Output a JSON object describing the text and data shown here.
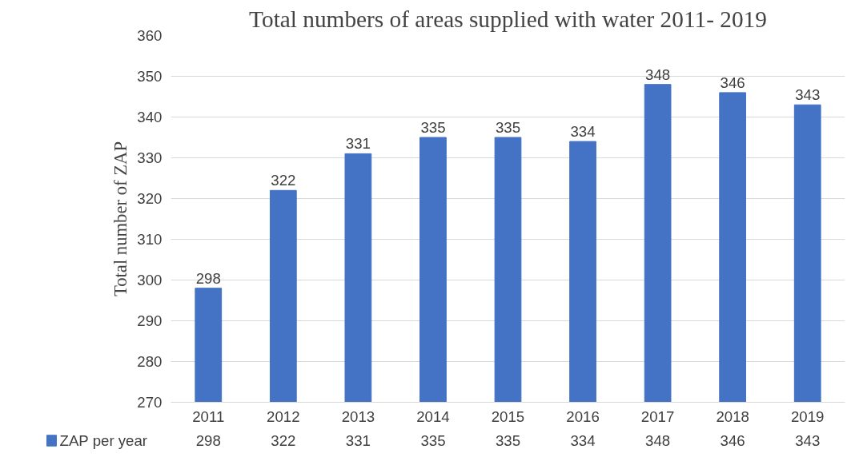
{
  "chart_data": {
    "type": "bar",
    "title": "Total numbers of areas supplied with water 2011- 2019",
    "ylabel": "Total number of ZAP",
    "categories": [
      "2011",
      "2012",
      "2013",
      "2014",
      "2015",
      "2016",
      "2017",
      "2018",
      "2019"
    ],
    "series": [
      {
        "name": "ZAP per year",
        "color": "#4472c4",
        "values": [
          298,
          322,
          331,
          335,
          335,
          334,
          348,
          346,
          343
        ]
      }
    ],
    "annotations": [
      {
        "text": "298",
        "x": "2011",
        "y": 298
      },
      {
        "text": "322",
        "x": "2012",
        "y": 322
      },
      {
        "text": "331",
        "x": "2013",
        "y": 331
      },
      {
        "text": "335",
        "x": "2014",
        "y": 335
      },
      {
        "text": "335",
        "x": "2015",
        "y": 335
      },
      {
        "text": "334",
        "x": "2016",
        "y": 334
      },
      {
        "text": "348",
        "x": "2017",
        "y": 348
      },
      {
        "text": "346",
        "x": "2018",
        "y": 346
      },
      {
        "text": "343",
        "x": "2019",
        "y": 343
      }
    ],
    "ylim": [
      270,
      360
    ],
    "yticks": [
      270,
      280,
      290,
      300,
      310,
      320,
      330,
      340,
      350,
      360
    ],
    "grid": "y",
    "legend": "bottom",
    "data_labels": true
  }
}
